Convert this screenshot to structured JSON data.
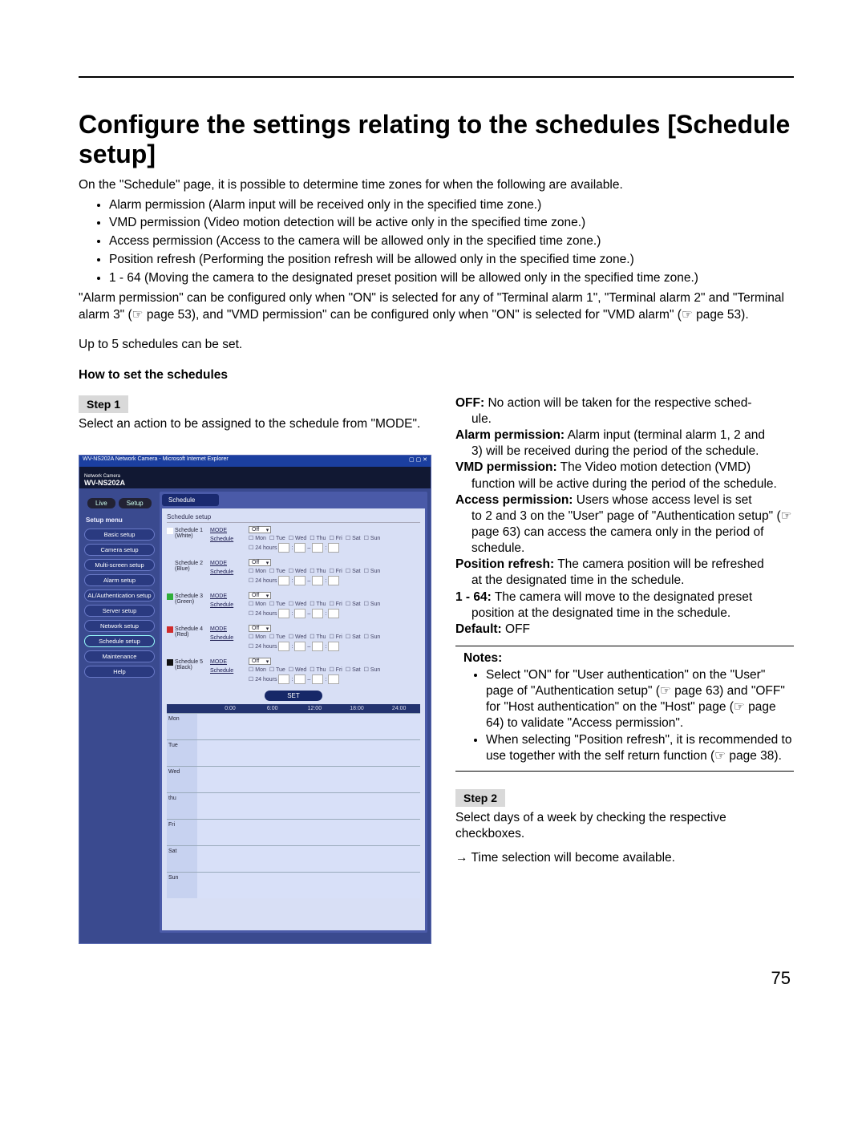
{
  "title": "Configure the settings relating to the schedules [Schedule setup]",
  "intro": "On the \"Schedule\" page, it is possible to determine time zones for when the following are available.",
  "bullets": [
    "Alarm permission (Alarm input will be received only in the specified time zone.)",
    "VMD permission (Video motion detection will be active only in the specified time zone.)",
    "Access permission (Access to the camera will be allowed only in the specified time zone.)",
    "Position refresh (Performing the position refresh will be allowed only in the specified time zone.)",
    "1 - 64 (Moving the camera to the designated preset position will be allowed only in the specified time zone.)"
  ],
  "after_bullets": "\"Alarm permission\" can be configured only when \"ON\" is selected for any of \"Terminal alarm 1\", \"Terminal alarm 2\" and \"Terminal alarm 3\" (☞ page 53), and \"VMD permission\" can be configured only when \"ON\" is selected for \"VMD alarm\" (☞ page 53).",
  "limit_line": "Up to 5 schedules can be set.",
  "howto_heading": "How to set the schedules",
  "step1_label": "Step 1",
  "step1_text": "Select an action to be assigned to the schedule from \"MODE\".",
  "defs": {
    "off_t": "OFF:",
    "off_d": "No action will be taken for the respective schedule.",
    "alarm_t": "Alarm permission:",
    "alarm_d": "Alarm input (terminal alarm 1, 2 and 3) will be received during the period of the schedule.",
    "vmd_t": "VMD permission:",
    "vmd_d": "The Video motion detection (VMD) function will be active during the period of the schedule.",
    "access_t": "Access permission:",
    "access_d": "Users whose access level is set to 2 and 3 on the \"User\" page of \"Authentication setup\" (☞ page 63) can access the camera only in the period of schedule.",
    "pos_t": "Position refresh:",
    "pos_d": "The camera position will be refreshed at the designated time in the schedule.",
    "n164_t": "1 - 64:",
    "n164_d": "The camera will move to the designated preset position at the designated time in the schedule.",
    "default_t": "Default:",
    "default_d": "OFF"
  },
  "notes_title": "Notes:",
  "notes": [
    "Select \"ON\" for \"User authentication\" on the \"User\" page of \"Authentication setup\" (☞ page 63) and \"OFF\" for \"Host authentication\" on the \"Host\" page (☞ page 64) to validate \"Access permission\".",
    "When selecting \"Position refresh\", it is recommended to use together with the self return function (☞ page 38)."
  ],
  "step2_label": "Step 2",
  "step2_text": "Select days of a week by checking the respective checkboxes.",
  "step2_arrow": "→ Time selection will become available.",
  "page_number": "75",
  "shot": {
    "titlebar": "WV-NS202A Network Camera - Microsoft Internet Explorer",
    "brand_small": "Network Camera",
    "model": "WV-NS202A",
    "tab_live": "Live",
    "tab_setup": "Setup",
    "sidebar_title": "Setup menu",
    "sidebar_items": [
      "Basic setup",
      "Camera setup",
      "Multi-screen setup",
      "Alarm setup",
      "AL/Authentication setup",
      "Server setup",
      "Network setup",
      "Schedule setup",
      "Maintenance",
      "Help"
    ],
    "main_tab": "Schedule",
    "section_title": "Schedule setup",
    "mode_label": "MODE",
    "schedule_label": "Schedule",
    "off_value": "Off",
    "hours_label": "24 hours",
    "days": [
      "Mon",
      "Tue",
      "Wed",
      "Thu",
      "Fri",
      "Sat",
      "Sun"
    ],
    "schedules": [
      {
        "name": "Schedule 1",
        "sub": "(White)",
        "color": "#ffffff"
      },
      {
        "name": "Schedule 2",
        "sub": "(Blue)",
        "color": "#2a6fer"
      },
      {
        "name": "Schedule 3",
        "sub": "(Green)",
        "color": "#2fae3a"
      },
      {
        "name": "Schedule 4",
        "sub": "(Red)",
        "color": "#d02c2c"
      },
      {
        "name": "Schedule 5",
        "sub": "(Black)",
        "color": "#111111"
      }
    ],
    "set_button": "SET",
    "time_marks": [
      "0:00",
      "6:00",
      "12:00",
      "18:00",
      "24:00"
    ],
    "grid_days": [
      "Mon",
      "Tue",
      "Wed",
      "thu",
      "Fri",
      "Sat",
      "Sun"
    ]
  }
}
